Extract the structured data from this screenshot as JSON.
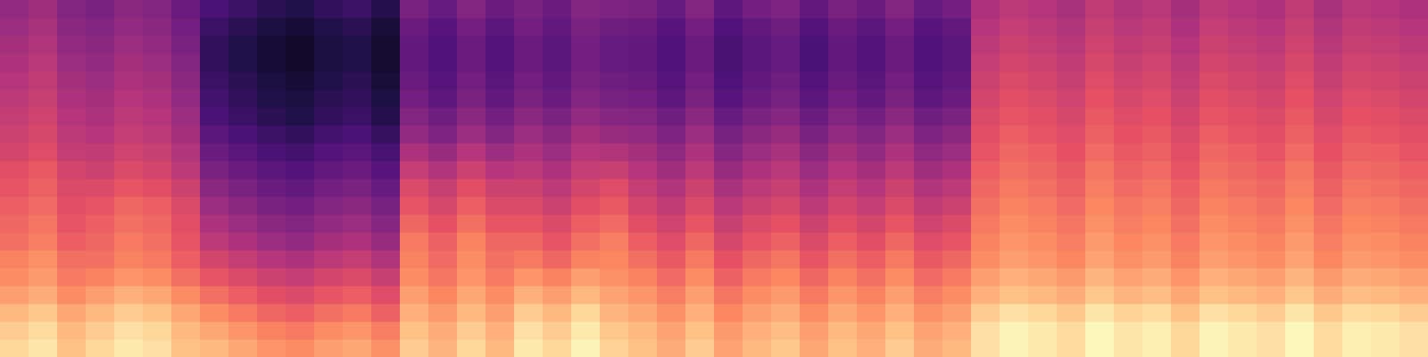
{
  "chart_data": {
    "type": "heatmap",
    "xlim": [
      0,
      50
    ],
    "ylim": [
      0,
      20
    ],
    "zlim": [
      0,
      100
    ],
    "tick_labels": false,
    "cells": [
      [
        92,
        90,
        86,
        80,
        76,
        74,
        70,
        68,
        66,
        64,
        62,
        58,
        56,
        54,
        52,
        50,
        48,
        46,
        44,
        42
      ],
      [
        95,
        93,
        89,
        83,
        79,
        77,
        73,
        71,
        69,
        67,
        65,
        61,
        59,
        57,
        55,
        53,
        51,
        49,
        47,
        45
      ],
      [
        88,
        86,
        82,
        76,
        72,
        70,
        66,
        64,
        62,
        60,
        58,
        54,
        52,
        50,
        48,
        46,
        44,
        42,
        40,
        38
      ],
      [
        92,
        90,
        86,
        80,
        74,
        70,
        68,
        66,
        64,
        60,
        56,
        53,
        50,
        48,
        46,
        44,
        42,
        40,
        38,
        36
      ],
      [
        96,
        94,
        90,
        84,
        78,
        74,
        72,
        70,
        68,
        64,
        60,
        57,
        54,
        52,
        50,
        48,
        46,
        44,
        42,
        40
      ],
      [
        94,
        92,
        88,
        82,
        76,
        72,
        70,
        68,
        66,
        62,
        58,
        55,
        52,
        50,
        48,
        46,
        44,
        42,
        40,
        38
      ],
      [
        88,
        86,
        82,
        76,
        70,
        66,
        64,
        62,
        60,
        56,
        52,
        49,
        46,
        44,
        42,
        40,
        38,
        36,
        34,
        32
      ],
      [
        86,
        82,
        76,
        70,
        64,
        58,
        52,
        48,
        44,
        40,
        36,
        32,
        28,
        24,
        22,
        20,
        18,
        18,
        20,
        24
      ],
      [
        82,
        78,
        72,
        66,
        60,
        54,
        48,
        44,
        40,
        36,
        32,
        28,
        24,
        20,
        18,
        16,
        14,
        14,
        16,
        20
      ],
      [
        78,
        74,
        68,
        62,
        56,
        50,
        44,
        40,
        36,
        32,
        28,
        24,
        20,
        16,
        14,
        12,
        10,
        10,
        12,
        16
      ],
      [
        76,
        72,
        66,
        60,
        54,
        48,
        42,
        38,
        34,
        30,
        26,
        22,
        18,
        14,
        12,
        10,
        8,
        8,
        10,
        14
      ],
      [
        80,
        76,
        70,
        64,
        58,
        52,
        46,
        42,
        38,
        34,
        30,
        26,
        22,
        18,
        16,
        14,
        12,
        12,
        14,
        18
      ],
      [
        82,
        78,
        72,
        66,
        60,
        54,
        48,
        44,
        40,
        36,
        32,
        28,
        24,
        20,
        18,
        16,
        14,
        14,
        16,
        20
      ],
      [
        77,
        73,
        67,
        61,
        55,
        49,
        43,
        39,
        35,
        31,
        27,
        23,
        19,
        15,
        13,
        11,
        9,
        9,
        11,
        15
      ],
      [
        90,
        88,
        84,
        80,
        76,
        74,
        72,
        68,
        64,
        60,
        54,
        48,
        42,
        38,
        34,
        32,
        30,
        30,
        32,
        36
      ],
      [
        85,
        83,
        79,
        75,
        71,
        69,
        67,
        63,
        59,
        55,
        49,
        43,
        37,
        33,
        29,
        27,
        25,
        25,
        27,
        31
      ],
      [
        92,
        90,
        86,
        82,
        78,
        76,
        74,
        70,
        66,
        62,
        56,
        50,
        44,
        40,
        36,
        34,
        32,
        32,
        34,
        38
      ],
      [
        86,
        84,
        80,
        76,
        72,
        70,
        68,
        64,
        60,
        56,
        50,
        44,
        38,
        34,
        30,
        28,
        26,
        26,
        28,
        32
      ],
      [
        96,
        94,
        90,
        84,
        78,
        72,
        68,
        64,
        60,
        56,
        52,
        48,
        44,
        40,
        36,
        34,
        32,
        32,
        34,
        36
      ],
      [
        92,
        90,
        86,
        80,
        74,
        68,
        64,
        60,
        56,
        52,
        48,
        44,
        40,
        36,
        32,
        30,
        28,
        28,
        30,
        32
      ],
      [
        98,
        96,
        92,
        86,
        80,
        74,
        70,
        66,
        62,
        58,
        54,
        50,
        46,
        42,
        38,
        36,
        34,
        34,
        36,
        38
      ],
      [
        91,
        89,
        85,
        81,
        77,
        75,
        73,
        69,
        65,
        61,
        55,
        49,
        43,
        39,
        35,
        33,
        31,
        31,
        33,
        37
      ],
      [
        88,
        86,
        82,
        78,
        74,
        70,
        66,
        62,
        58,
        54,
        50,
        46,
        42,
        38,
        34,
        32,
        30,
        30,
        32,
        36
      ],
      [
        83,
        81,
        77,
        73,
        69,
        65,
        61,
        57,
        53,
        49,
        45,
        41,
        37,
        33,
        29,
        27,
        25,
        25,
        27,
        31
      ],
      [
        90,
        88,
        84,
        80,
        76,
        72,
        68,
        64,
        60,
        56,
        52,
        48,
        44,
        40,
        36,
        34,
        32,
        32,
        34,
        38
      ],
      [
        81,
        79,
        75,
        71,
        67,
        63,
        59,
        55,
        51,
        47,
        43,
        39,
        35,
        31,
        27,
        25,
        23,
        23,
        25,
        29
      ],
      [
        86,
        84,
        80,
        76,
        72,
        68,
        64,
        60,
        56,
        52,
        48,
        44,
        40,
        36,
        32,
        30,
        28,
        28,
        30,
        34
      ],
      [
        89,
        87,
        83,
        79,
        75,
        71,
        67,
        63,
        59,
        55,
        51,
        47,
        43,
        39,
        35,
        33,
        31,
        31,
        33,
        37
      ],
      [
        82,
        80,
        76,
        72,
        68,
        64,
        60,
        56,
        52,
        48,
        44,
        40,
        36,
        32,
        28,
        26,
        24,
        24,
        26,
        30
      ],
      [
        88,
        86,
        82,
        78,
        74,
        70,
        66,
        62,
        58,
        54,
        50,
        46,
        42,
        38,
        34,
        32,
        30,
        30,
        32,
        36
      ],
      [
        84,
        82,
        78,
        74,
        70,
        66,
        62,
        58,
        54,
        50,
        46,
        42,
        38,
        34,
        30,
        28,
        26,
        26,
        28,
        32
      ],
      [
        90,
        88,
        84,
        80,
        76,
        72,
        68,
        64,
        60,
        56,
        52,
        48,
        44,
        40,
        36,
        34,
        32,
        32,
        34,
        38
      ],
      [
        83,
        81,
        77,
        73,
        69,
        65,
        61,
        57,
        53,
        49,
        45,
        41,
        37,
        33,
        29,
        27,
        25,
        25,
        27,
        31
      ],
      [
        86,
        84,
        80,
        76,
        72,
        68,
        64,
        60,
        56,
        52,
        48,
        44,
        40,
        36,
        32,
        30,
        28,
        28,
        30,
        34
      ],
      [
        94,
        94,
        90,
        84,
        80,
        76,
        74,
        72,
        70,
        68,
        66,
        64,
        62,
        60,
        58,
        56,
        54,
        52,
        50,
        48
      ],
      [
        98,
        98,
        94,
        88,
        84,
        80,
        78,
        76,
        74,
        72,
        70,
        68,
        66,
        64,
        62,
        60,
        58,
        56,
        54,
        52
      ],
      [
        96,
        96,
        92,
        86,
        82,
        78,
        76,
        74,
        72,
        70,
        68,
        66,
        64,
        62,
        60,
        58,
        56,
        54,
        52,
        50
      ],
      [
        93,
        93,
        89,
        83,
        79,
        75,
        73,
        71,
        69,
        67,
        65,
        63,
        61,
        59,
        57,
        55,
        53,
        51,
        49,
        47
      ],
      [
        99,
        99,
        95,
        89,
        85,
        81,
        79,
        77,
        75,
        73,
        71,
        69,
        67,
        65,
        63,
        61,
        59,
        57,
        55,
        53
      ],
      [
        95,
        95,
        91,
        85,
        81,
        77,
        75,
        73,
        71,
        69,
        67,
        65,
        63,
        61,
        59,
        57,
        55,
        53,
        51,
        49
      ],
      [
        97,
        97,
        93,
        87,
        83,
        79,
        77,
        75,
        73,
        71,
        69,
        67,
        65,
        63,
        61,
        59,
        57,
        55,
        53,
        51
      ],
      [
        92,
        92,
        88,
        82,
        78,
        74,
        72,
        70,
        68,
        66,
        64,
        62,
        60,
        58,
        56,
        54,
        52,
        50,
        48,
        46
      ],
      [
        98,
        98,
        94,
        88,
        84,
        80,
        78,
        76,
        74,
        72,
        70,
        68,
        66,
        64,
        62,
        60,
        58,
        56,
        54,
        52
      ],
      [
        96,
        96,
        92,
        86,
        82,
        78,
        76,
        74,
        72,
        70,
        68,
        66,
        64,
        62,
        60,
        58,
        56,
        54,
        52,
        50
      ],
      [
        94,
        94,
        90,
        84,
        80,
        76,
        74,
        72,
        70,
        68,
        66,
        64,
        62,
        60,
        58,
        56,
        54,
        52,
        50,
        48
      ],
      [
        99,
        99,
        95,
        89,
        85,
        81,
        79,
        77,
        75,
        73,
        71,
        69,
        67,
        65,
        63,
        61,
        59,
        57,
        55,
        53
      ],
      [
        93,
        93,
        89,
        83,
        79,
        75,
        73,
        71,
        69,
        67,
        65,
        63,
        61,
        59,
        57,
        55,
        53,
        51,
        49,
        47
      ],
      [
        97,
        97,
        93,
        87,
        83,
        79,
        77,
        75,
        73,
        71,
        69,
        67,
        65,
        63,
        61,
        59,
        57,
        55,
        53,
        51
      ],
      [
        96,
        96,
        92,
        86,
        82,
        78,
        76,
        74,
        72,
        70,
        68,
        66,
        64,
        62,
        60,
        58,
        56,
        54,
        52,
        50
      ],
      [
        94,
        94,
        90,
        84,
        80,
        76,
        74,
        72,
        70,
        68,
        66,
        64,
        62,
        60,
        58,
        56,
        54,
        52,
        50,
        48
      ]
    ]
  }
}
